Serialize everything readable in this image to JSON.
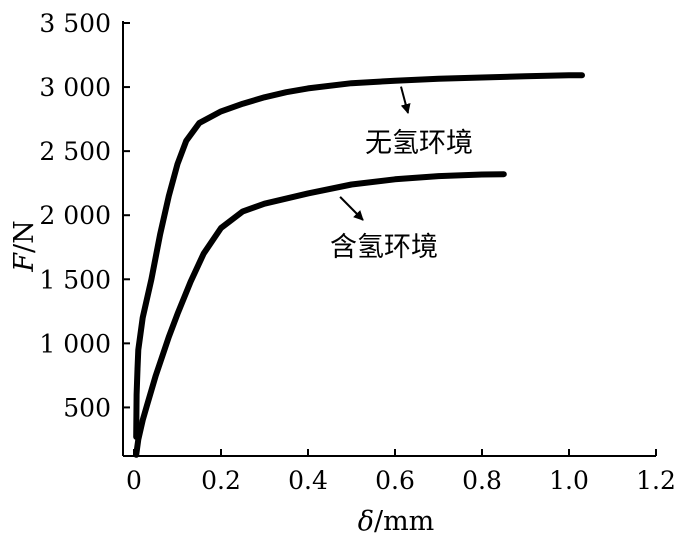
{
  "chart_data": {
    "type": "line",
    "xlabel_italic": "δ",
    "xlabel_unit": "/mm",
    "ylabel_italic": "F",
    "ylabel_unit": "/N",
    "xlim": [
      0,
      1.2
    ],
    "ylim": [
      0,
      3500
    ],
    "x_ticks": [
      0,
      0.2,
      0.4,
      0.6,
      0.8,
      1.0,
      1.2
    ],
    "x_tick_labels": [
      "0",
      "0.2",
      "0.4",
      "0.6",
      "0.8",
      "1.0",
      "1.2"
    ],
    "y_ticks": [
      500,
      1000,
      1500,
      2000,
      2500,
      3000,
      3500
    ],
    "y_tick_labels": [
      "500",
      "1 000",
      "1 500",
      "2 000",
      "2 500",
      "3 000",
      "3 500"
    ],
    "grid": false,
    "series": [
      {
        "name": "无氢环境",
        "x": [
          0.005,
          0.006,
          0.008,
          0.01,
          0.02,
          0.04,
          0.06,
          0.08,
          0.1,
          0.12,
          0.15,
          0.2,
          0.25,
          0.3,
          0.35,
          0.4,
          0.5,
          0.6,
          0.7,
          0.8,
          0.9,
          1.0,
          1.03
        ],
        "y": [
          270,
          600,
          800,
          950,
          1200,
          1500,
          1850,
          2150,
          2400,
          2580,
          2720,
          2810,
          2870,
          2920,
          2960,
          2990,
          3030,
          3050,
          3065,
          3075,
          3085,
          3092,
          3092
        ]
      },
      {
        "name": "含氢环境",
        "x": [
          0.005,
          0.01,
          0.02,
          0.03,
          0.05,
          0.08,
          0.1,
          0.13,
          0.16,
          0.2,
          0.25,
          0.3,
          0.4,
          0.5,
          0.6,
          0.7,
          0.8,
          0.85
        ],
        "y": [
          130,
          250,
          400,
          520,
          750,
          1050,
          1230,
          1480,
          1700,
          1900,
          2030,
          2090,
          2170,
          2240,
          2280,
          2305,
          2318,
          2320
        ]
      }
    ],
    "annotations": [
      {
        "text": "无氢环境",
        "series": 0,
        "arrow_to": [
          0.6,
          3050
        ]
      },
      {
        "text": "含氢环境",
        "series": 1,
        "arrow_to": [
          0.46,
          2190
        ]
      }
    ]
  }
}
